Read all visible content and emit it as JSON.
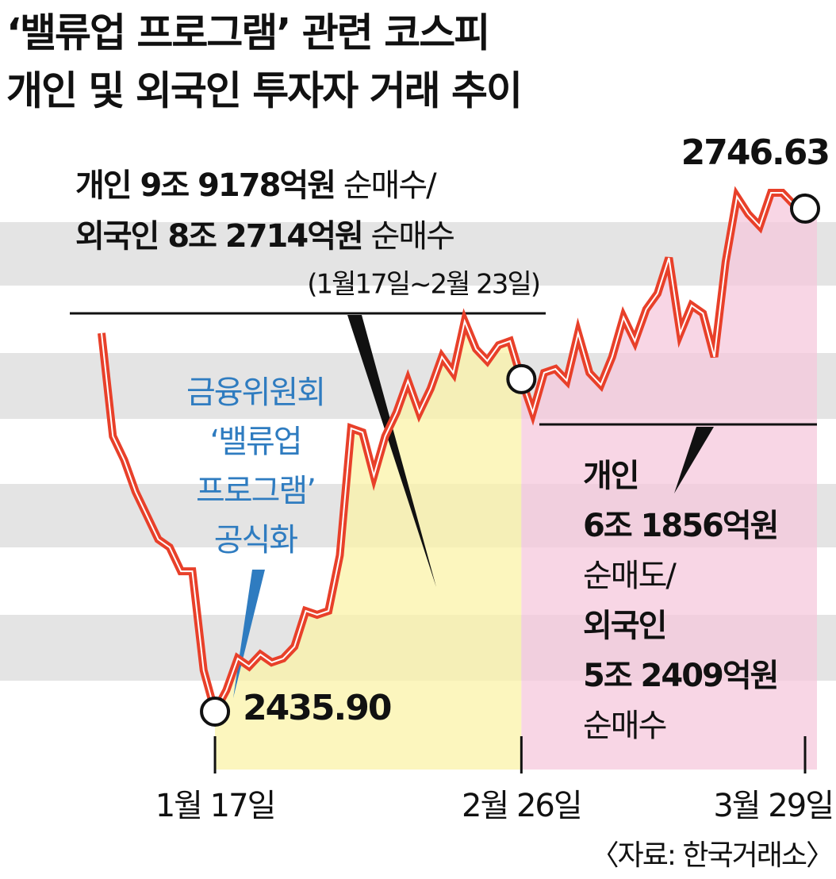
{
  "chart_data": {
    "type": "line",
    "title": [
      "‘밸류업 프로그램’ 관련 코스피",
      "개인 및 외국인 투자자 거래 추이"
    ],
    "categories": [
      null,
      null,
      null,
      null,
      null,
      null,
      null,
      null,
      null,
      null,
      "1월 17일",
      null,
      null,
      null,
      null,
      null,
      null,
      null,
      null,
      null,
      null,
      null,
      null,
      null,
      null,
      null,
      null,
      null,
      null,
      null,
      null,
      null,
      null,
      null,
      null,
      null,
      null,
      "2월 26일",
      null,
      null,
      null,
      null,
      null,
      null,
      null,
      null,
      null,
      null,
      null,
      null,
      null,
      null,
      null,
      null,
      null,
      null,
      null,
      null,
      null,
      null,
      null,
      null,
      "3월 29일"
    ],
    "values": [
      2669.7,
      2606.0,
      2591.3,
      2571.7,
      2557.0,
      2542.3,
      2537.4,
      2522.6,
      2522.6,
      2461.4,
      2435.9,
      2449.1,
      2468.7,
      2463.8,
      2471.2,
      2466.3,
      2468.7,
      2476.1,
      2498.1,
      2495.7,
      2498.1,
      2532.4,
      2610.9,
      2608.4,
      2581.5,
      2606.0,
      2620.7,
      2640.3,
      2620.7,
      2635.4,
      2655.0,
      2645.2,
      2677.0,
      2659.9,
      2652.5,
      2662.3,
      2664.8,
      2641.3,
      2620.7,
      2645.2,
      2647.6,
      2640.3,
      2669.7,
      2645.2,
      2637.8,
      2655.0,
      2679.5,
      2664.8,
      2684.4,
      2694.2,
      2716.2,
      2669.7,
      2686.8,
      2681.9,
      2655.0,
      2713.8,
      2754.0,
      2743.2,
      2735.8,
      2756.4,
      2756.4,
      2749.1,
      2746.63
    ],
    "value_labels": [
      null,
      null,
      null,
      null,
      null,
      null,
      null,
      null,
      null,
      null,
      "2435.90",
      null,
      null,
      null,
      null,
      null,
      null,
      null,
      null,
      null,
      null,
      null,
      null,
      null,
      null,
      null,
      null,
      null,
      null,
      null,
      null,
      null,
      null,
      null,
      null,
      null,
      null,
      null,
      null,
      null,
      null,
      null,
      null,
      null,
      null,
      null,
      null,
      null,
      null,
      null,
      null,
      null,
      null,
      null,
      null,
      null,
      null,
      null,
      null,
      null,
      null,
      null,
      null
    ],
    "color": "#e8402a",
    "period1_note": {
      "lines": [
        {
          "bold": "개인 9조 9178억원",
          "text": "순매수/"
        },
        {
          "bold": "외국인 8조 2714억원",
          "text": "순매수"
        }
      ],
      "period": "(1월17일~2월 23일)"
    },
    "event_note": [
      "금융위원회",
      "‘밸류업",
      "프로그램’",
      "공식화"
    ],
    "period2_note": [
      {
        "text": "개인",
        "bold": true
      },
      {
        "text": "6조 1856억원",
        "bold": true
      },
      {
        "text": "순매도/",
        "bold": false
      },
      {
        "text": "외국인",
        "bold": true
      },
      {
        "text": "5조 2409억원",
        "bold": true
      },
      {
        "text": "순매수",
        "bold": false
      }
    ],
    "source": "〈자료: 한국거래소〉"
  }
}
